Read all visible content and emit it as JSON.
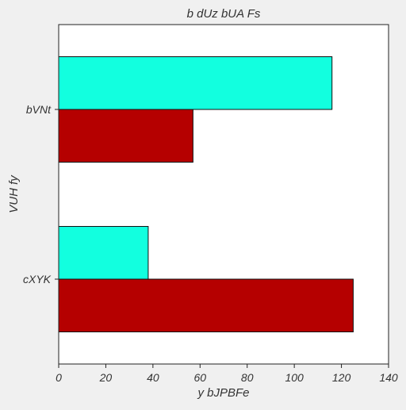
{
  "chart_data": {
    "type": "bar",
    "orientation": "horizontal",
    "title": "b  dUz bUA  Fs",
    "xlabel": "y bJPBFe",
    "ylabel": "VUH fy",
    "categories": [
      "bVNt",
      "cXYK"
    ],
    "series": [
      {
        "color": "#12ffdf",
        "values": [
          116,
          38
        ]
      },
      {
        "color": "#b50000",
        "values": [
          57,
          125
        ]
      }
    ],
    "xlim": [
      0,
      140
    ],
    "xticks": [
      0,
      20,
      40,
      60,
      80,
      100,
      120,
      140
    ],
    "grid": false,
    "legend": "none"
  }
}
